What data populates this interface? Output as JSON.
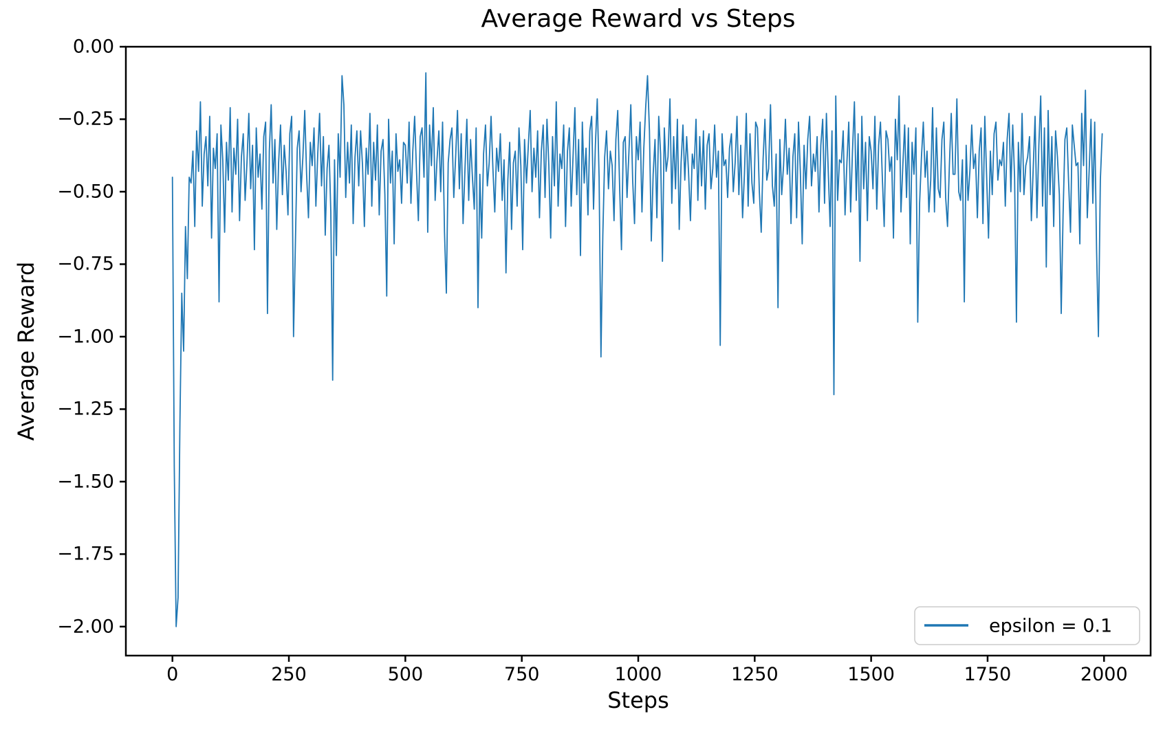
{
  "figure": {
    "title": "Average Reward vs Steps"
  },
  "chart_data": {
    "type": "line",
    "title": "Average Reward vs Steps",
    "xlabel": "Steps",
    "ylabel": "Average Reward",
    "xlim": [
      -100,
      2100
    ],
    "ylim": [
      -2.1,
      0.0
    ],
    "grid": false,
    "x_ticks": [
      0,
      250,
      500,
      750,
      1000,
      1250,
      1500,
      1750,
      2000
    ],
    "x_tick_labels": [
      "0",
      "250",
      "500",
      "750",
      "1000",
      "1250",
      "1500",
      "1750",
      "2000"
    ],
    "y_ticks": [
      0.0,
      -0.25,
      -0.5,
      -0.75,
      -1.0,
      -1.25,
      -1.5,
      -1.75,
      -2.0
    ],
    "y_tick_labels": [
      "0.00",
      "−0.25",
      "−0.50",
      "−0.75",
      "−1.00",
      "−1.25",
      "−1.50",
      "−1.75",
      "−2.00"
    ],
    "legend": {
      "location": "lower right",
      "border_color": "#cccccc",
      "entries": [
        {
          "label": "epsilon = 0.1",
          "color": "#1f77b4"
        }
      ]
    },
    "series": [
      {
        "name": "epsilon = 0.1",
        "color": "#1f77b4",
        "x_start": 0,
        "x_step": 4,
        "values": [
          -0.45,
          -1.45,
          -2.0,
          -1.9,
          -1.3,
          -0.85,
          -1.05,
          -0.62,
          -0.8,
          -0.45,
          -0.47,
          -0.36,
          -0.62,
          -0.29,
          -0.43,
          -0.19,
          -0.55,
          -0.37,
          -0.31,
          -0.48,
          -0.24,
          -0.66,
          -0.35,
          -0.42,
          -0.3,
          -0.88,
          -0.27,
          -0.39,
          -0.64,
          -0.33,
          -0.46,
          -0.21,
          -0.57,
          -0.35,
          -0.44,
          -0.25,
          -0.6,
          -0.38,
          -0.3,
          -0.53,
          -0.4,
          -0.23,
          -0.49,
          -0.34,
          -0.7,
          -0.28,
          -0.45,
          -0.37,
          -0.56,
          -0.31,
          -0.26,
          -0.92,
          -0.36,
          -0.2,
          -0.47,
          -0.32,
          -0.63,
          -0.4,
          -0.27,
          -0.51,
          -0.34,
          -0.43,
          -0.58,
          -0.3,
          -0.24,
          -1.0,
          -0.68,
          -0.35,
          -0.29,
          -0.5,
          -0.38,
          -0.22,
          -0.44,
          -0.59,
          -0.33,
          -0.41,
          -0.28,
          -0.55,
          -0.37,
          -0.23,
          -0.48,
          -0.31,
          -0.65,
          -0.42,
          -0.34,
          -0.57,
          -1.15,
          -0.39,
          -0.72,
          -0.3,
          -0.45,
          -0.1,
          -0.2,
          -0.52,
          -0.33,
          -0.47,
          -0.27,
          -0.61,
          -0.38,
          -0.29,
          -0.48,
          -0.29,
          -0.41,
          -0.62,
          -0.35,
          -0.44,
          -0.23,
          -0.55,
          -0.33,
          -0.46,
          -0.27,
          -0.58,
          -0.36,
          -0.32,
          -0.51,
          -0.86,
          -0.25,
          -0.47,
          -0.36,
          -0.68,
          -0.3,
          -0.43,
          -0.39,
          -0.54,
          -0.33,
          -0.34,
          -0.47,
          -0.26,
          -0.54,
          -0.36,
          -0.24,
          -0.43,
          -0.6,
          -0.31,
          -0.28,
          -0.45,
          -0.09,
          -0.64,
          -0.27,
          -0.41,
          -0.21,
          -0.53,
          -0.39,
          -0.29,
          -0.5,
          -0.26,
          -0.64,
          -0.85,
          -0.4,
          -0.32,
          -0.28,
          -0.52,
          -0.38,
          -0.22,
          -0.49,
          -0.3,
          -0.61,
          -0.42,
          -0.25,
          -0.53,
          -0.32,
          -0.45,
          -0.56,
          -0.28,
          -0.9,
          -0.44,
          -0.66,
          -0.37,
          -0.27,
          -0.48,
          -0.4,
          -0.24,
          -0.42,
          -0.57,
          -0.35,
          -0.43,
          -0.3,
          -0.53,
          -0.39,
          -0.78,
          -0.46,
          -0.33,
          -0.63,
          -0.4,
          -0.36,
          -0.55,
          -0.28,
          -0.41,
          -0.7,
          -0.32,
          -0.47,
          -0.34,
          -0.22,
          -0.5,
          -0.35,
          -0.45,
          -0.29,
          -0.59,
          -0.36,
          -0.27,
          -0.52,
          -0.25,
          -0.41,
          -0.66,
          -0.31,
          -0.48,
          -0.19,
          -0.55,
          -0.37,
          -0.42,
          -0.27,
          -0.62,
          -0.36,
          -0.28,
          -0.55,
          -0.38,
          -0.21,
          -0.51,
          -0.32,
          -0.72,
          -0.26,
          -0.47,
          -0.35,
          -0.58,
          -0.29,
          -0.24,
          -0.56,
          -0.34,
          -0.18,
          -0.45,
          -1.07,
          -0.65,
          -0.38,
          -0.29,
          -0.49,
          -0.36,
          -0.41,
          -0.6,
          -0.32,
          -0.22,
          -0.48,
          -0.7,
          -0.33,
          -0.31,
          -0.52,
          -0.36,
          -0.2,
          -0.46,
          -0.61,
          -0.31,
          -0.39,
          -0.26,
          -0.57,
          -0.35,
          -0.21,
          -0.1,
          -0.29,
          -0.67,
          -0.44,
          -0.32,
          -0.59,
          -0.24,
          -0.37,
          -0.74,
          -0.28,
          -0.43,
          -0.38,
          -0.18,
          -0.54,
          -0.31,
          -0.49,
          -0.25,
          -0.63,
          -0.4,
          -0.27,
          -0.46,
          -0.31,
          -0.43,
          -0.6,
          -0.37,
          -0.42,
          -0.25,
          -0.53,
          -0.31,
          -0.48,
          -0.29,
          -0.56,
          -0.34,
          -0.3,
          -0.49,
          -0.42,
          -0.27,
          -0.45,
          -0.36,
          -1.03,
          -0.3,
          -0.41,
          -0.39,
          -0.52,
          -0.35,
          -0.3,
          -0.5,
          -0.4,
          -0.24,
          -0.51,
          -0.34,
          -0.59,
          -0.44,
          -0.23,
          -0.55,
          -0.3,
          -0.47,
          -0.54,
          -0.26,
          -0.28,
          -0.5,
          -0.64,
          -0.39,
          -0.25,
          -0.46,
          -0.42,
          -0.2,
          -0.48,
          -0.55,
          -0.37,
          -0.9,
          -0.32,
          -0.51,
          -0.41,
          -0.25,
          -0.44,
          -0.35,
          -0.61,
          -0.38,
          -0.3,
          -0.59,
          -0.26,
          -0.43,
          -0.68,
          -0.34,
          -0.49,
          -0.32,
          -0.24,
          -0.48,
          -0.37,
          -0.43,
          -0.31,
          -0.57,
          -0.34,
          -0.25,
          -0.54,
          -0.23,
          -0.43,
          -0.62,
          -0.29,
          -1.2,
          -0.17,
          -0.53,
          -0.39,
          -0.4,
          -0.29,
          -0.58,
          -0.4,
          -0.26,
          -0.57,
          -0.36,
          -0.19,
          -0.53,
          -0.3,
          -0.74,
          -0.24,
          -0.49,
          -0.33,
          -0.6,
          -0.31,
          -0.36,
          -0.49,
          -0.24,
          -0.56,
          -0.34,
          -0.26,
          -0.45,
          -0.62,
          -0.29,
          -0.32,
          -0.43,
          -0.38,
          -0.66,
          -0.25,
          -0.39,
          -0.17,
          -0.57,
          -0.41,
          -0.27,
          -0.52,
          -0.28,
          -0.68,
          -0.33,
          -0.44,
          -0.28,
          -0.95,
          -0.54,
          -0.38,
          -0.26,
          -0.45,
          -0.36,
          -0.57,
          -0.46,
          -0.21,
          -0.57,
          -0.28,
          -0.49,
          -0.52,
          -0.32,
          -0.26,
          -0.52,
          -0.62,
          -0.41,
          -0.23,
          -0.44,
          -0.44,
          -0.18,
          -0.5,
          -0.53,
          -0.39,
          -0.88,
          -0.34,
          -0.53,
          -0.43,
          -0.27,
          -0.42,
          -0.37,
          -0.59,
          -0.36,
          -0.28,
          -0.61,
          -0.24,
          -0.45,
          -0.66,
          -0.36,
          -0.51,
          -0.3,
          -0.26,
          -0.46,
          -0.39,
          -0.41,
          -0.33,
          -0.55,
          -0.32,
          -0.23,
          -0.5,
          -0.27,
          -0.45,
          -0.95,
          -0.33,
          -0.5,
          -0.23,
          -0.51,
          -0.41,
          -0.38,
          -0.31,
          -0.6,
          -0.42,
          -0.24,
          -0.59,
          -0.34,
          -0.17,
          -0.55,
          -0.28,
          -0.76,
          -0.22,
          -0.51,
          -0.31,
          -0.62,
          -0.29,
          -0.38,
          -0.51,
          -0.92,
          -0.58,
          -0.32,
          -0.28,
          -0.47,
          -0.64,
          -0.27,
          -0.34,
          -0.41,
          -0.4,
          -0.68,
          -0.23,
          -0.41,
          -0.15,
          -0.59,
          -0.43,
          -0.25,
          -0.54,
          -0.26,
          -0.7,
          -1.0,
          -0.46,
          -0.3
        ]
      }
    ]
  }
}
